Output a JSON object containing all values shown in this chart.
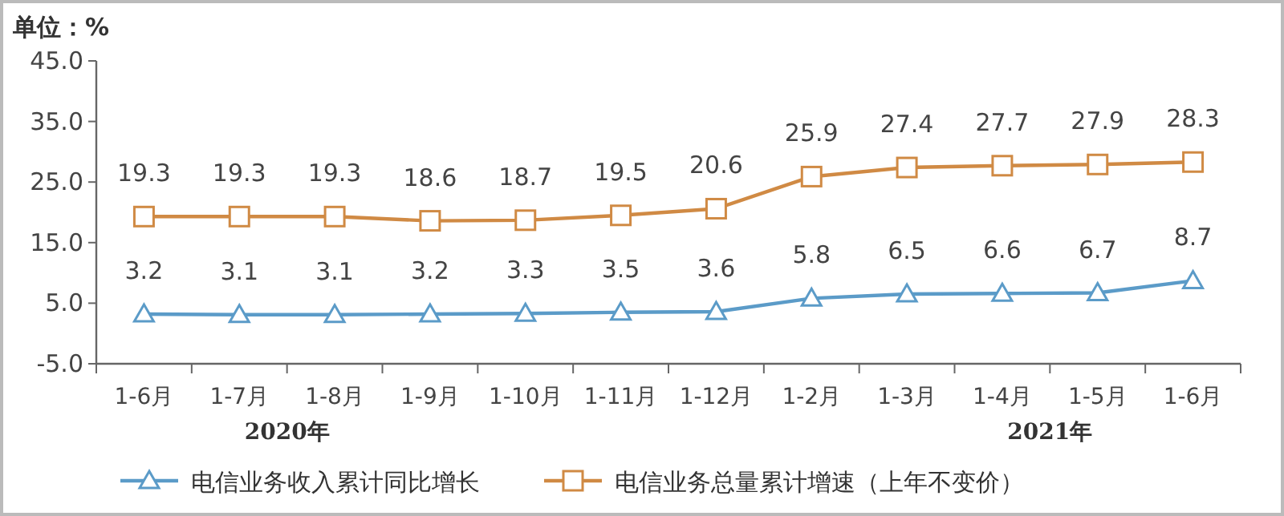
{
  "chart_data": {
    "type": "line",
    "ylabel": "单位：%",
    "categories": [
      "1-6月",
      "1-7月",
      "1-8月",
      "1-9月",
      "1-10月",
      "1-11月",
      "1-12月",
      "1-2月",
      "1-3月",
      "1-4月",
      "1-5月",
      "1-6月"
    ],
    "series": [
      {
        "name": "电信业务收入累计同比增长",
        "color": "#5b9bc8",
        "marker": "triangle",
        "values": [
          3.2,
          3.1,
          3.1,
          3.2,
          3.3,
          3.5,
          3.6,
          5.8,
          6.5,
          6.6,
          6.7,
          8.7
        ]
      },
      {
        "name": "电信业务总量累计增速（上年不变价）",
        "color": "#d08a44",
        "marker": "square",
        "values": [
          19.3,
          19.3,
          19.3,
          18.6,
          18.7,
          19.5,
          20.6,
          25.9,
          27.4,
          27.7,
          27.9,
          28.3
        ]
      }
    ],
    "ylim": [
      -5,
      45
    ],
    "yticks": [
      {
        "value": -5,
        "label": "-5.0"
      },
      {
        "value": 5,
        "label": "5.0"
      },
      {
        "value": 15,
        "label": "15.0"
      },
      {
        "value": 25,
        "label": "25.0"
      },
      {
        "value": 35,
        "label": "35.0"
      },
      {
        "value": 45,
        "label": "45.0"
      }
    ],
    "data_labels": true,
    "legend": "bottom",
    "grid": false,
    "annotations": [
      "2020年",
      "2021年"
    ]
  }
}
